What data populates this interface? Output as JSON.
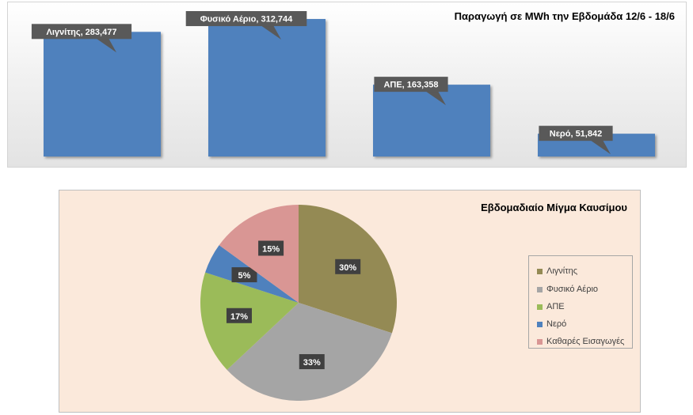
{
  "chart_data": [
    {
      "type": "bar",
      "title": "Παραγωγή σε MWh την Εβδομάδα 12/6 - 18/6",
      "categories": [
        "Λιγνίτης",
        "Φυσικό Αέριο",
        "ΑΠΕ",
        "Νερό"
      ],
      "values": [
        283477,
        312744,
        163358,
        51842
      ],
      "data_labels": [
        "Λιγνίτης, 283,477",
        "Φυσικό Αέριο, 312,744",
        "ΑΠΕ, 163,358",
        "Νερό, 51,842"
      ],
      "ylim": [
        0,
        320000
      ],
      "bar_color": "#4f81bd",
      "grid": false
    },
    {
      "type": "pie",
      "title": "Εβδομαδιαίο Μίγμα Καυσίμου",
      "labels": [
        "Λιγνίτης",
        "Φυσικό Αέριο",
        "ΑΠΕ",
        "Νερό",
        "Καθαρές Εισαγωγές"
      ],
      "values": [
        30,
        33,
        17,
        5,
        15
      ],
      "data_labels": [
        "30%",
        "33%",
        "17%",
        "5%",
        "15%"
      ],
      "colors": [
        "#948a54",
        "#a5a5a5",
        "#9bbb59",
        "#4f81bd",
        "#d99694"
      ],
      "legend_position": "right"
    }
  ]
}
